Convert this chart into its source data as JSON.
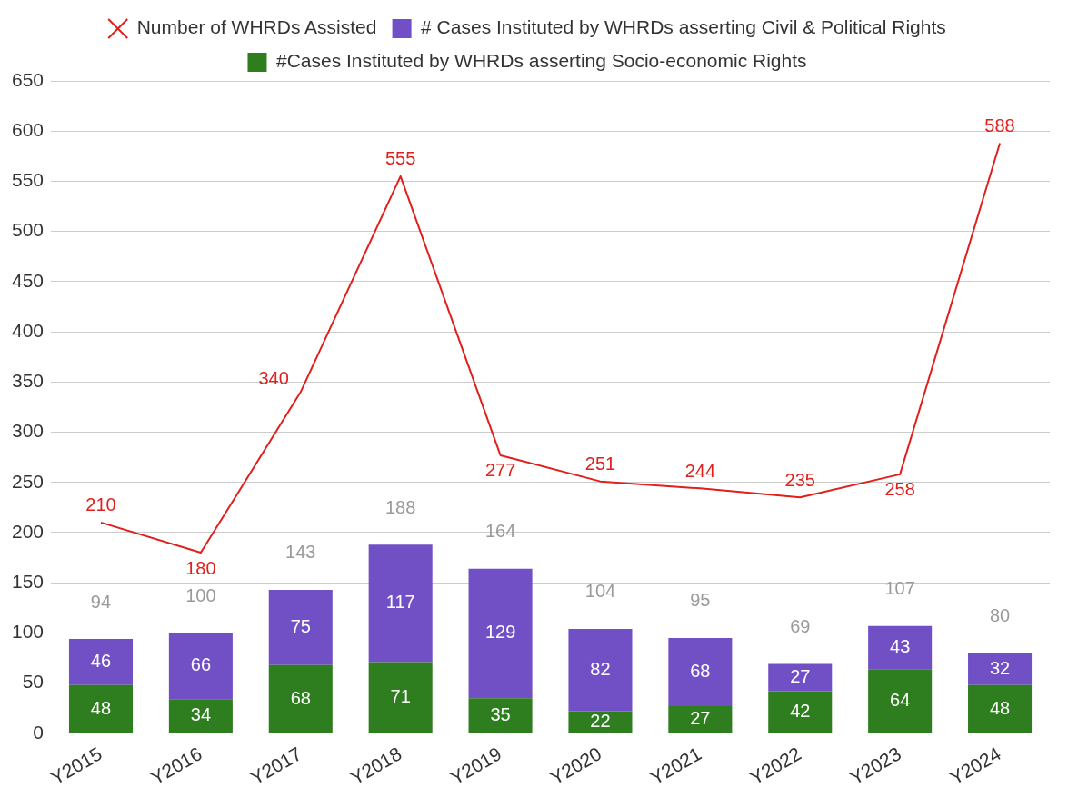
{
  "chart_data": {
    "type": "bar",
    "stacked": true,
    "categories": [
      "Y2015",
      "Y2016",
      "Y2017",
      "Y2018",
      "Y2019",
      "Y2020",
      "Y2021",
      "Y2022",
      "Y2023",
      "Y2024"
    ],
    "series": [
      {
        "name": "#Cases Instituted by WHRDs asserting Socio-economic Rights",
        "color": "#2e7d1f",
        "values": [
          48,
          34,
          68,
          71,
          35,
          22,
          27,
          42,
          64,
          48
        ]
      },
      {
        "name": "# Cases Instituted by WHRDs asserting Civil & Political Rights",
        "color": "#7150c6",
        "values": [
          46,
          66,
          75,
          117,
          129,
          82,
          68,
          27,
          43,
          32
        ]
      },
      {
        "name": "Number of WHRDs Assisted",
        "type": "line",
        "color": "#e0201c",
        "marker": "none",
        "values": [
          210,
          180,
          340,
          555,
          277,
          251,
          244,
          235,
          258,
          588
        ]
      }
    ],
    "totals": [
      "94",
      "100",
      "143",
      "188",
      "164",
      "104",
      "95",
      "69",
      "107",
      "80"
    ],
    "data_labels": true,
    "ylim": [
      0,
      650
    ],
    "yticks": [
      0,
      50,
      100,
      150,
      200,
      250,
      300,
      350,
      400,
      450,
      500,
      550,
      600,
      650
    ],
    "grid": "y",
    "legend": "top"
  }
}
